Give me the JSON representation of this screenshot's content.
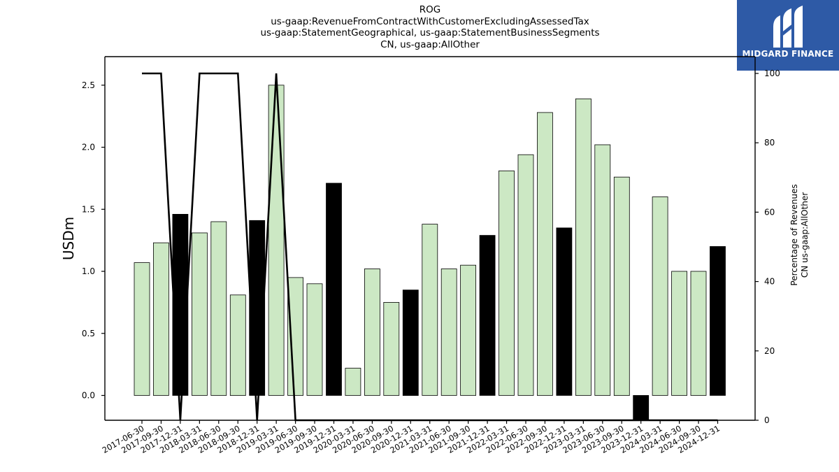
{
  "logo": {
    "text": "MIDGARD FINANCE",
    "icon": "midgard-logo-icon",
    "background": "#2e5aa6"
  },
  "chart_data": {
    "type": "bar",
    "title_lines": [
      "ROG",
      "us-gaap:RevenueFromContractWithCustomerExcludingAssessedTax",
      "us-gaap:StatementGeographical, us-gaap:StatementBusinessSegments",
      "CN, us-gaap:AllOther"
    ],
    "ylabel": "USDm",
    "y2label_lines": [
      "Percentage of Revenues",
      "CN us-gaap:AllOther"
    ],
    "ylim": [
      -0.2,
      2.73
    ],
    "y2lim": [
      0,
      100
    ],
    "yticks": [
      "0.0",
      "0.5",
      "1.0",
      "1.5",
      "2.0",
      "2.5"
    ],
    "y2ticks": [
      "0",
      "20",
      "40",
      "60",
      "80",
      "100"
    ],
    "categories": [
      "2017-06-30",
      "2017-09-30",
      "2017-12-31",
      "2018-03-31",
      "2018-06-30",
      "2018-09-30",
      "2018-12-31",
      "2019-03-31",
      "2019-06-30",
      "2019-09-30",
      "2019-12-31",
      "2020-03-31",
      "2020-06-30",
      "2020-09-30",
      "2020-12-31",
      "2021-03-31",
      "2021-06-30",
      "2021-09-30",
      "2021-12-31",
      "2022-03-31",
      "2022-06-30",
      "2022-09-30",
      "2022-12-31",
      "2023-03-31",
      "2023-06-30",
      "2023-09-30",
      "2023-12-31",
      "2024-03-31",
      "2024-06-30",
      "2024-09-30",
      "2024-12-31"
    ],
    "series": [
      {
        "type": "bar",
        "values": [
          1.07,
          1.23,
          1.46,
          1.31,
          1.4,
          0.81,
          1.41,
          2.5,
          0.95,
          0.9,
          1.71,
          0.22,
          1.02,
          0.75,
          0.85,
          1.38,
          1.02,
          1.05,
          1.29,
          1.81,
          1.94,
          2.28,
          1.35,
          2.39,
          2.02,
          1.76,
          -0.2,
          1.6,
          1.0,
          1.0,
          1.2
        ],
        "highlight": [
          false,
          false,
          true,
          false,
          false,
          false,
          true,
          false,
          false,
          false,
          true,
          false,
          false,
          false,
          true,
          false,
          false,
          false,
          true,
          false,
          false,
          false,
          true,
          false,
          false,
          false,
          true,
          false,
          false,
          false,
          true
        ]
      },
      {
        "type": "line",
        "axis": "right",
        "values": [
          100,
          100,
          0,
          100,
          100,
          100,
          0,
          100,
          0,
          0,
          0,
          0,
          0,
          0,
          0,
          0,
          0,
          0,
          0,
          0,
          0,
          0,
          0,
          0,
          0,
          0,
          0,
          0,
          0,
          0,
          0
        ]
      }
    ],
    "colors": {
      "bar": "#cce8c4",
      "bar_highlight": "#000000",
      "line": "#000000"
    },
    "grid": false
  }
}
